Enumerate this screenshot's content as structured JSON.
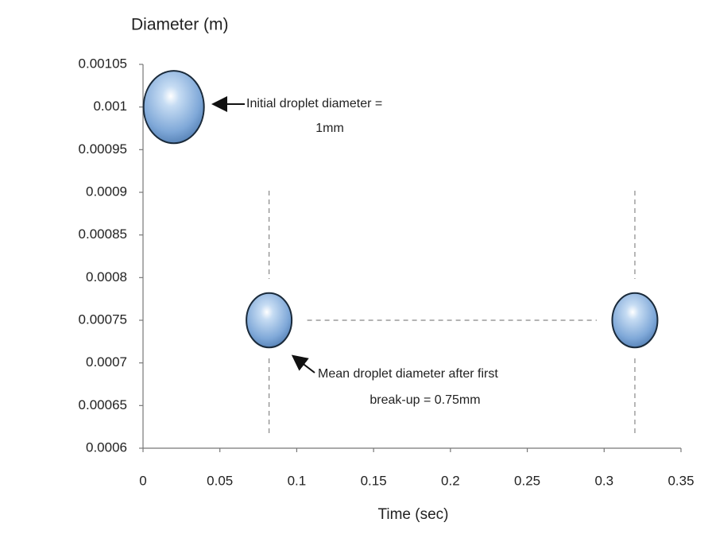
{
  "chart_data": {
    "type": "scatter",
    "y_label": "Diameter (m)",
    "x_label": "Time (sec)",
    "x": [
      0.02,
      0.082,
      0.32
    ],
    "values": [
      0.001,
      0.00075,
      0.00075
    ],
    "color": "#7fa8d8",
    "xlim": [
      0,
      0.35
    ],
    "xticks": [
      0,
      0.05,
      0.1,
      0.15,
      0.2,
      0.25,
      0.3,
      0.35
    ],
    "ylim": [
      0.0006,
      0.00105
    ],
    "yticks": [
      0.0006,
      0.00065,
      0.0007,
      0.00075,
      0.0008,
      0.00085,
      0.0009,
      0.00095,
      0.001,
      0.00105
    ],
    "grid": false,
    "annotations": [
      {
        "lines": [
          "Initial droplet diameter =",
          "1mm"
        ]
      },
      {
        "lines": [
          "Mean droplet diameter after first",
          "break-up = 0.75mm"
        ]
      }
    ]
  }
}
